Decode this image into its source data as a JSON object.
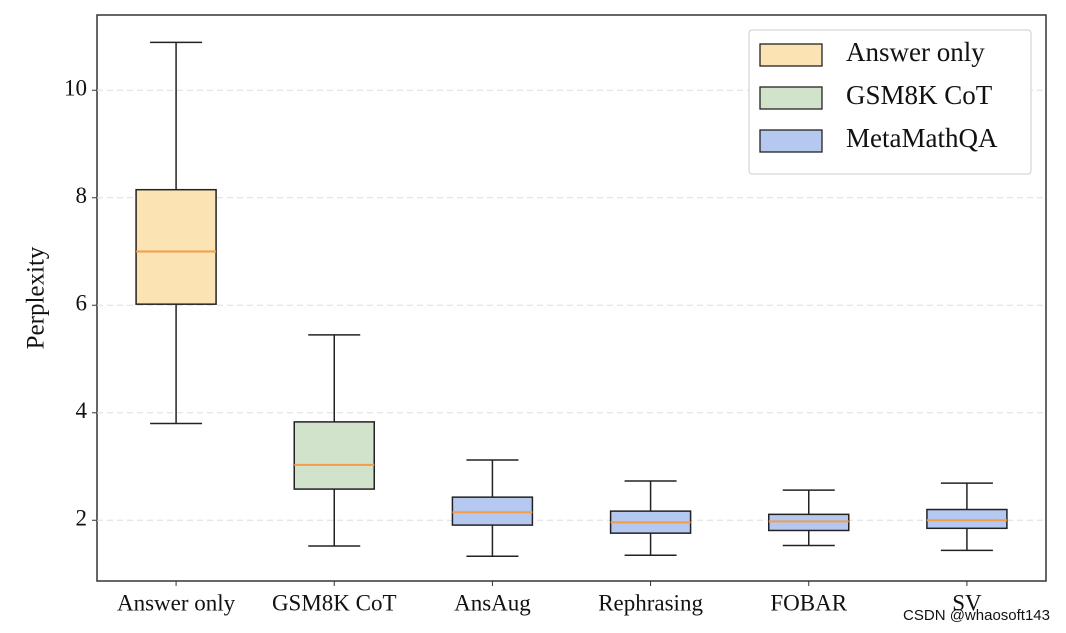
{
  "chart_data": {
    "type": "box",
    "y_label": "Perplexity",
    "categories": [
      "Answer only",
      "GSM8K CoT",
      "AnsAug",
      "Rephrasing",
      "FOBAR",
      "SV"
    ],
    "series": [
      {
        "name": "Answer only",
        "color": "#fce3b3",
        "values": [
          {
            "whislo": 3.8,
            "q1": 6.02,
            "med": 7.0,
            "q3": 8.15,
            "whishi": 10.89
          },
          null,
          null,
          null,
          null,
          null
        ]
      },
      {
        "name": "GSM8K CoT",
        "color": "#d2e3cc",
        "values": [
          null,
          {
            "whislo": 1.52,
            "q1": 2.58,
            "med": 3.03,
            "q3": 3.83,
            "whishi": 5.45
          },
          null,
          null,
          null,
          null
        ]
      },
      {
        "name": "MetaMathQA",
        "color": "#b5c8f0",
        "values": [
          null,
          null,
          {
            "whislo": 1.33,
            "q1": 1.91,
            "med": 2.15,
            "q3": 2.43,
            "whishi": 3.12
          },
          {
            "whislo": 1.35,
            "q1": 1.76,
            "med": 1.96,
            "q3": 2.17,
            "whishi": 2.73
          },
          {
            "whislo": 1.53,
            "q1": 1.81,
            "med": 1.98,
            "q3": 2.11,
            "whishi": 2.56
          },
          {
            "whislo": 1.44,
            "q1": 1.85,
            "med": 2.0,
            "q3": 2.2,
            "whishi": 2.69
          }
        ]
      }
    ],
    "median_color": "#f39c4a",
    "ylim": [
      0.87,
      11.4
    ],
    "yticks": [
      2,
      4,
      6,
      8,
      10
    ],
    "grid": true,
    "legend": "upper right",
    "watermark": "CSDN @whaosoft143"
  }
}
